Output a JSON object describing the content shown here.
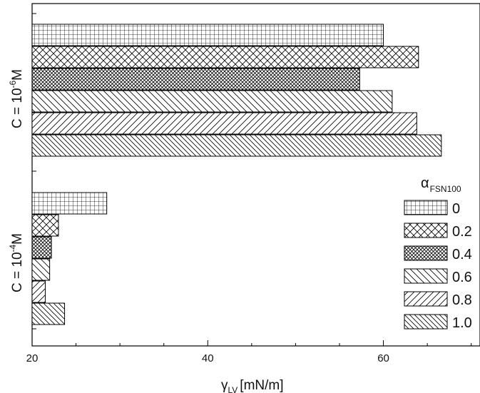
{
  "chart_data": {
    "type": "bar",
    "orientation": "horizontal",
    "xlabel": {
      "symbol": "γ",
      "subscript": "LV",
      "unit": "[mN/m]"
    },
    "x_ticks": [
      20,
      40,
      60
    ],
    "xlim": [
      20,
      71
    ],
    "legend": {
      "title": {
        "symbol": "α",
        "subscript": "FSN100"
      },
      "placement": "right"
    },
    "groups": [
      {
        "label_base": "C = 10",
        "label_exp": "-6",
        "label_unit": "M"
      },
      {
        "label_base": "C = 10",
        "label_exp": "-4",
        "label_unit": "M"
      }
    ],
    "series": [
      {
        "name": "0",
        "pattern": "grid",
        "values": [
          60.0,
          28.5
        ]
      },
      {
        "name": "0.2",
        "pattern": "crosshatch",
        "values": [
          64.0,
          23.0
        ]
      },
      {
        "name": "0.4",
        "pattern": "dense-cross",
        "values": [
          57.3,
          22.2
        ]
      },
      {
        "name": "0.6",
        "pattern": "backslash",
        "values": [
          61.0,
          22.0
        ]
      },
      {
        "name": "0.8",
        "pattern": "slash",
        "values": [
          63.8,
          21.5
        ]
      },
      {
        "name": "1.0",
        "pattern": "backslash-dense",
        "values": [
          66.6,
          23.7
        ]
      }
    ]
  }
}
